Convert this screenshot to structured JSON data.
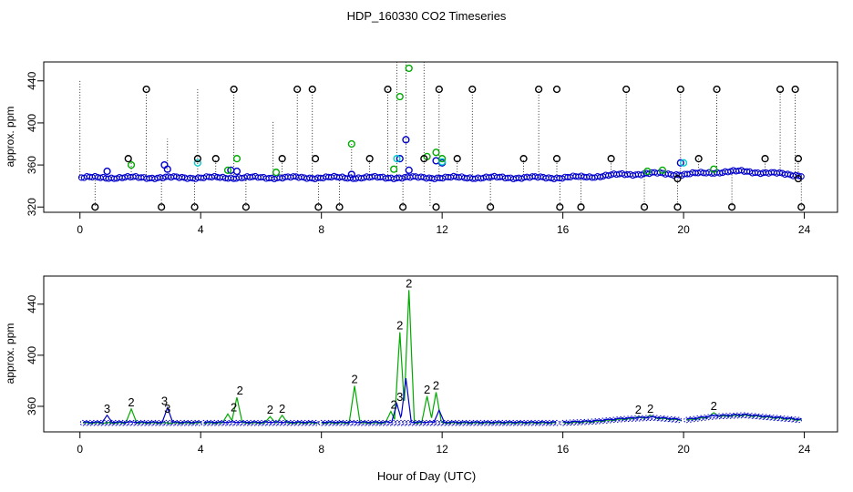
{
  "chart_data": {
    "title": "HDP_160330  CO2 Timeseries",
    "xlabel": "Hour of Day (UTC)",
    "colors": {
      "black": "#000000",
      "blue": "#0000cc",
      "cyan": "#00cccc",
      "green": "#00aa00",
      "frame": "#000000"
    },
    "panels": [
      {
        "type": "scatter",
        "ylabel": "approx. ppm",
        "xlim": [
          -1.2,
          25.1
        ],
        "ylim": [
          315,
          458
        ],
        "xticks": [
          0,
          4,
          8,
          12,
          16,
          20,
          24
        ],
        "xtick_labels": [
          "0",
          "4",
          "8",
          "12",
          "16",
          "20",
          "24"
        ],
        "yticks": [
          320,
          360,
          400,
          440
        ],
        "ytick_labels": [
          "320",
          "360",
          "400",
          "440"
        ],
        "baseline": [
          [
            0,
            348
          ],
          [
            8,
            348
          ],
          [
            12,
            348
          ],
          [
            16,
            348
          ],
          [
            17,
            349
          ],
          [
            18,
            351
          ],
          [
            19,
            352
          ],
          [
            20,
            351
          ],
          [
            21,
            353
          ],
          [
            22,
            354
          ],
          [
            23,
            352
          ],
          [
            24,
            350
          ]
        ],
        "spikes_hour": [
          0.0,
          0.5,
          1.7,
          2.2,
          2.7,
          2.9,
          3.8,
          3.9,
          4.5,
          5.1,
          5.5,
          6.4,
          6.7,
          7.2,
          7.7,
          7.9,
          8.6,
          9.0,
          9.6,
          10.2,
          10.5,
          10.7,
          10.8,
          11.4,
          11.6,
          11.9,
          12.5,
          13.0,
          13.6,
          14.7,
          15.2,
          15.8,
          15.9,
          16.6,
          17.6,
          18.1,
          18.7,
          19.8,
          19.9,
          20.5,
          21.1,
          21.6,
          22.7,
          23.2,
          23.7,
          23.8,
          23.9
        ],
        "spikes_top": [
          440,
          320,
          365,
          432,
          320,
          385,
          320,
          432,
          366,
          432,
          320,
          402,
          366,
          432,
          432,
          320,
          320,
          380,
          366,
          432,
          458,
          320,
          458,
          458,
          320,
          432,
          366,
          432,
          320,
          366,
          432,
          366,
          320,
          320,
          366,
          432,
          320,
          320,
          432,
          366,
          432,
          320,
          366,
          432,
          432,
          366,
          320
        ],
        "black_points": {
          "x": [
            0.5,
            1.6,
            2.2,
            2.7,
            3.8,
            3.9,
            4.5,
            5.1,
            5.5,
            6.7,
            7.2,
            7.7,
            7.8,
            7.9,
            8.6,
            9.6,
            10.2,
            10.7,
            11.4,
            11.8,
            11.9,
            12.5,
            13.0,
            13.6,
            14.7,
            15.2,
            15.8,
            15.8,
            15.9,
            16.6,
            17.6,
            18.1,
            18.7,
            19.8,
            19.8,
            19.9,
            20.5,
            21.1,
            21.6,
            22.7,
            23.2,
            23.7,
            23.8,
            23.8,
            23.9
          ],
          "y": [
            320,
            366,
            432,
            320,
            320,
            366,
            366,
            432,
            320,
            366,
            432,
            432,
            366,
            320,
            320,
            366,
            432,
            320,
            366,
            320,
            432,
            366,
            432,
            320,
            366,
            432,
            432,
            366,
            320,
            320,
            366,
            432,
            320,
            320,
            347,
            432,
            366,
            432,
            320,
            366,
            432,
            432,
            366,
            347,
            320
          ]
        },
        "blue_points": {
          "x": [
            0.9,
            2.8,
            2.9,
            5.0,
            5.2,
            9.0,
            10.6,
            10.8,
            10.9,
            11.8,
            12.0,
            19.9
          ],
          "y": [
            354,
            360,
            356,
            355,
            354,
            351,
            366,
            384,
            355,
            364,
            362,
            362
          ]
        },
        "cyan_points": {
          "x": [
            3.9,
            10.5,
            12.0,
            20.0
          ],
          "y": [
            362,
            366,
            363,
            362
          ]
        },
        "green_points": {
          "x": [
            1.7,
            4.9,
            5.2,
            6.5,
            9.0,
            10.4,
            10.6,
            10.9,
            11.5,
            11.8,
            12.0,
            18.8,
            19.3,
            21.0
          ],
          "y": [
            360,
            355,
            366,
            353,
            380,
            356,
            425,
            452,
            368,
            372,
            366,
            354,
            355,
            356
          ]
        }
      },
      {
        "type": "line",
        "ylabel": "approx. ppm",
        "xlim": [
          -1.2,
          25.1
        ],
        "ylim": [
          340,
          462
        ],
        "xticks": [
          0,
          4,
          8,
          12,
          16,
          20,
          24
        ],
        "xtick_labels": [
          "0",
          "4",
          "8",
          "12",
          "16",
          "20",
          "24"
        ],
        "yticks": [
          360,
          400,
          440
        ],
        "ytick_labels": [
          "360",
          "400",
          "440"
        ],
        "segments": [
          [
            0.1,
            4.0
          ],
          [
            4.1,
            7.9
          ],
          [
            8.0,
            15.8
          ],
          [
            16.0,
            19.9
          ],
          [
            20.1,
            23.9
          ]
        ],
        "baseline": [
          [
            0,
            347
          ],
          [
            8,
            347
          ],
          [
            12,
            347
          ],
          [
            16,
            347
          ],
          [
            17,
            348
          ],
          [
            18,
            350
          ],
          [
            19,
            351
          ],
          [
            20,
            349
          ],
          [
            21,
            352
          ],
          [
            22,
            353
          ],
          [
            23,
            351
          ],
          [
            24,
            349
          ]
        ],
        "green_peaks": [
          {
            "x": 1.7,
            "y": 358
          },
          {
            "x": 4.9,
            "y": 354
          },
          {
            "x": 5.2,
            "y": 367
          },
          {
            "x": 6.3,
            "y": 352
          },
          {
            "x": 6.7,
            "y": 353
          },
          {
            "x": 9.1,
            "y": 376
          },
          {
            "x": 10.3,
            "y": 356
          },
          {
            "x": 10.6,
            "y": 418
          },
          {
            "x": 10.9,
            "y": 451
          },
          {
            "x": 11.5,
            "y": 368
          },
          {
            "x": 11.8,
            "y": 371
          },
          {
            "x": 18.5,
            "y": 352
          },
          {
            "x": 18.9,
            "y": 353
          },
          {
            "x": 21.0,
            "y": 355
          }
        ],
        "blue_peaks": [
          {
            "x": 0.9,
            "y": 353
          },
          {
            "x": 2.9,
            "y": 359
          },
          {
            "x": 10.8,
            "y": 382
          },
          {
            "x": 10.5,
            "y": 362
          },
          {
            "x": 11.9,
            "y": 357
          }
        ],
        "label_points": [
          {
            "x": 0.9,
            "y": 353,
            "label": "3",
            "color": "blue"
          },
          {
            "x": 1.7,
            "y": 358,
            "label": "2",
            "color": "green"
          },
          {
            "x": 2.8,
            "y": 359,
            "label": "3",
            "color": "blue"
          },
          {
            "x": 2.9,
            "y": 353,
            "label": "3",
            "color": "blue"
          },
          {
            "x": 5.1,
            "y": 354,
            "label": "2",
            "color": "green"
          },
          {
            "x": 5.3,
            "y": 367,
            "label": "2",
            "color": "green"
          },
          {
            "x": 6.3,
            "y": 352,
            "label": "2",
            "color": "green"
          },
          {
            "x": 6.7,
            "y": 353,
            "label": "2",
            "color": "green"
          },
          {
            "x": 9.1,
            "y": 376,
            "label": "2",
            "color": "green"
          },
          {
            "x": 10.4,
            "y": 356,
            "label": "2",
            "color": "green"
          },
          {
            "x": 10.6,
            "y": 418,
            "label": "2",
            "color": "green"
          },
          {
            "x": 10.6,
            "y": 362,
            "label": "3",
            "color": "blue"
          },
          {
            "x": 10.9,
            "y": 451,
            "label": "2",
            "color": "green"
          },
          {
            "x": 11.5,
            "y": 368,
            "label": "2",
            "color": "green"
          },
          {
            "x": 11.8,
            "y": 371,
            "label": "2",
            "color": "green"
          },
          {
            "x": 18.5,
            "y": 352,
            "label": "2",
            "color": "green"
          },
          {
            "x": 18.9,
            "y": 353,
            "label": "2",
            "color": "green"
          },
          {
            "x": 21.0,
            "y": 355,
            "label": "2",
            "color": "green"
          }
        ]
      }
    ]
  }
}
